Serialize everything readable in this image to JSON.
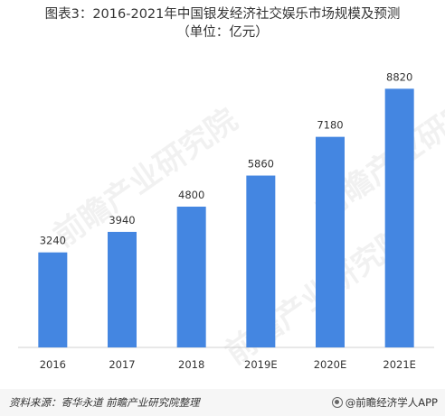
{
  "title_line1": "图表3：2016-2021年中国银发经济社交娱乐市场规模及预测",
  "title_line2": "（单位：亿元）",
  "watermark_text": "前瞻产业研究院",
  "footer": {
    "source": "资料来源：寄华永道  前瞻产业研究院整理",
    "brand": "@前瞻经济学人APP"
  },
  "colors": {
    "bar": "#4486e1",
    "footer_bg": "#f6f6f6",
    "axis": "#d0d0d0"
  },
  "chart_data": {
    "type": "bar",
    "title": "图表3：2016-2021年中国银发经济社交娱乐市场规模及预测（单位：亿元）",
    "xlabel": "",
    "ylabel": "",
    "categories": [
      "2016",
      "2017",
      "2018",
      "2019E",
      "2020E",
      "2021E"
    ],
    "values": [
      3240,
      3940,
      4800,
      5860,
      7180,
      8820
    ],
    "data_labels": [
      "3240",
      "3940",
      "4800",
      "5860",
      "7180",
      "8820"
    ],
    "ylim": [
      0,
      10000
    ],
    "grid": false,
    "legend": "none"
  }
}
